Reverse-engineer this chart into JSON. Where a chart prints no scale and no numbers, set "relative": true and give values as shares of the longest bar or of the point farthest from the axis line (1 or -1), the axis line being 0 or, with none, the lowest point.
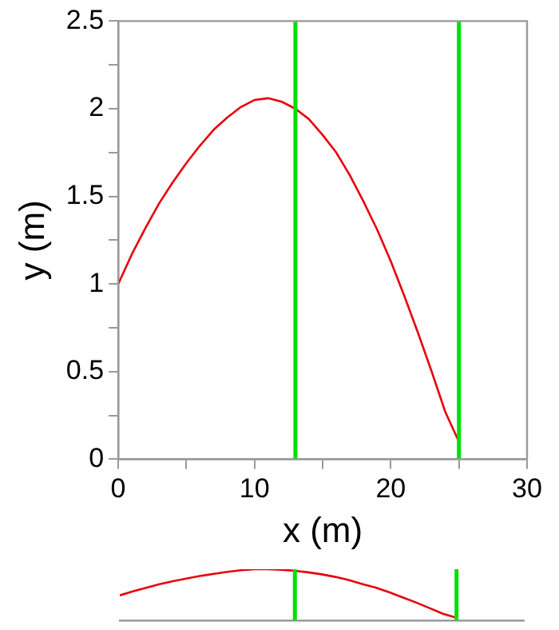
{
  "chart_data": [
    {
      "type": "line",
      "xlabel": "x (m)",
      "ylabel": "y (m)",
      "xlim": [
        0,
        30
      ],
      "ylim": [
        0,
        2.5
      ],
      "xticks": [
        0,
        {
          "value": 5,
          "label": null
        },
        10,
        {
          "value": 15,
          "label": null
        },
        20,
        {
          "value": 25,
          "label": null
        },
        30
      ],
      "yticks": [
        0,
        {
          "value": 0.25,
          "label": null
        },
        0.5,
        {
          "value": 0.75,
          "label": null
        },
        1,
        {
          "value": 1.25,
          "label": null
        },
        1.5,
        {
          "value": 1.75,
          "label": null
        },
        2,
        {
          "value": 2.25,
          "label": null
        },
        2.5
      ],
      "x": [
        0,
        1,
        2,
        3,
        4,
        5,
        6,
        7,
        8,
        9,
        10,
        11,
        12,
        13,
        14,
        15,
        16,
        17,
        18,
        19,
        20,
        21,
        22,
        23,
        24,
        25
      ],
      "series": [
        {
          "color": "#e8000b",
          "values": [
            1,
            1.17,
            1.32,
            1.46,
            1.58,
            1.69,
            1.79,
            1.88,
            1.95,
            2.01,
            2.05,
            2.06,
            2.04,
            2,
            1.94,
            1.85,
            1.75,
            1.62,
            1.47,
            1.31,
            1.13,
            0.93,
            0.72,
            0.5,
            0.27,
            0.1
          ]
        }
      ],
      "ref_lines": [
        {
          "axis": "x",
          "value": 13,
          "color": "#00e000"
        },
        {
          "axis": "x",
          "value": 25,
          "color": "#00e000"
        }
      ],
      "grid": false,
      "legend": false,
      "marker": "none",
      "line_style": "solid"
    },
    {
      "type": "line",
      "relative": true,
      "xlim": [
        0,
        30
      ],
      "tick_labels": false,
      "x": [
        0,
        1,
        2,
        3,
        4,
        5,
        6,
        7,
        8,
        9,
        10,
        11,
        12,
        13,
        14,
        15,
        16,
        17,
        18,
        19,
        20,
        21,
        22,
        23,
        24,
        25
      ],
      "series": [
        {
          "color": "#e8000b",
          "values": [
            0.49,
            0.57,
            0.64,
            0.71,
            0.77,
            0.82,
            0.87,
            0.91,
            0.95,
            0.98,
            1,
            1,
            0.99,
            0.97,
            0.94,
            0.9,
            0.85,
            0.79,
            0.71,
            0.64,
            0.55,
            0.45,
            0.35,
            0.24,
            0.13,
            0.05
          ]
        }
      ],
      "ref_lines": [
        {
          "axis": "x",
          "value": 13,
          "color": "#00e000"
        },
        {
          "axis": "x",
          "value": 25,
          "color": "#00e000"
        }
      ],
      "grid": false,
      "legend": false,
      "marker": "none",
      "line_style": "solid"
    }
  ]
}
